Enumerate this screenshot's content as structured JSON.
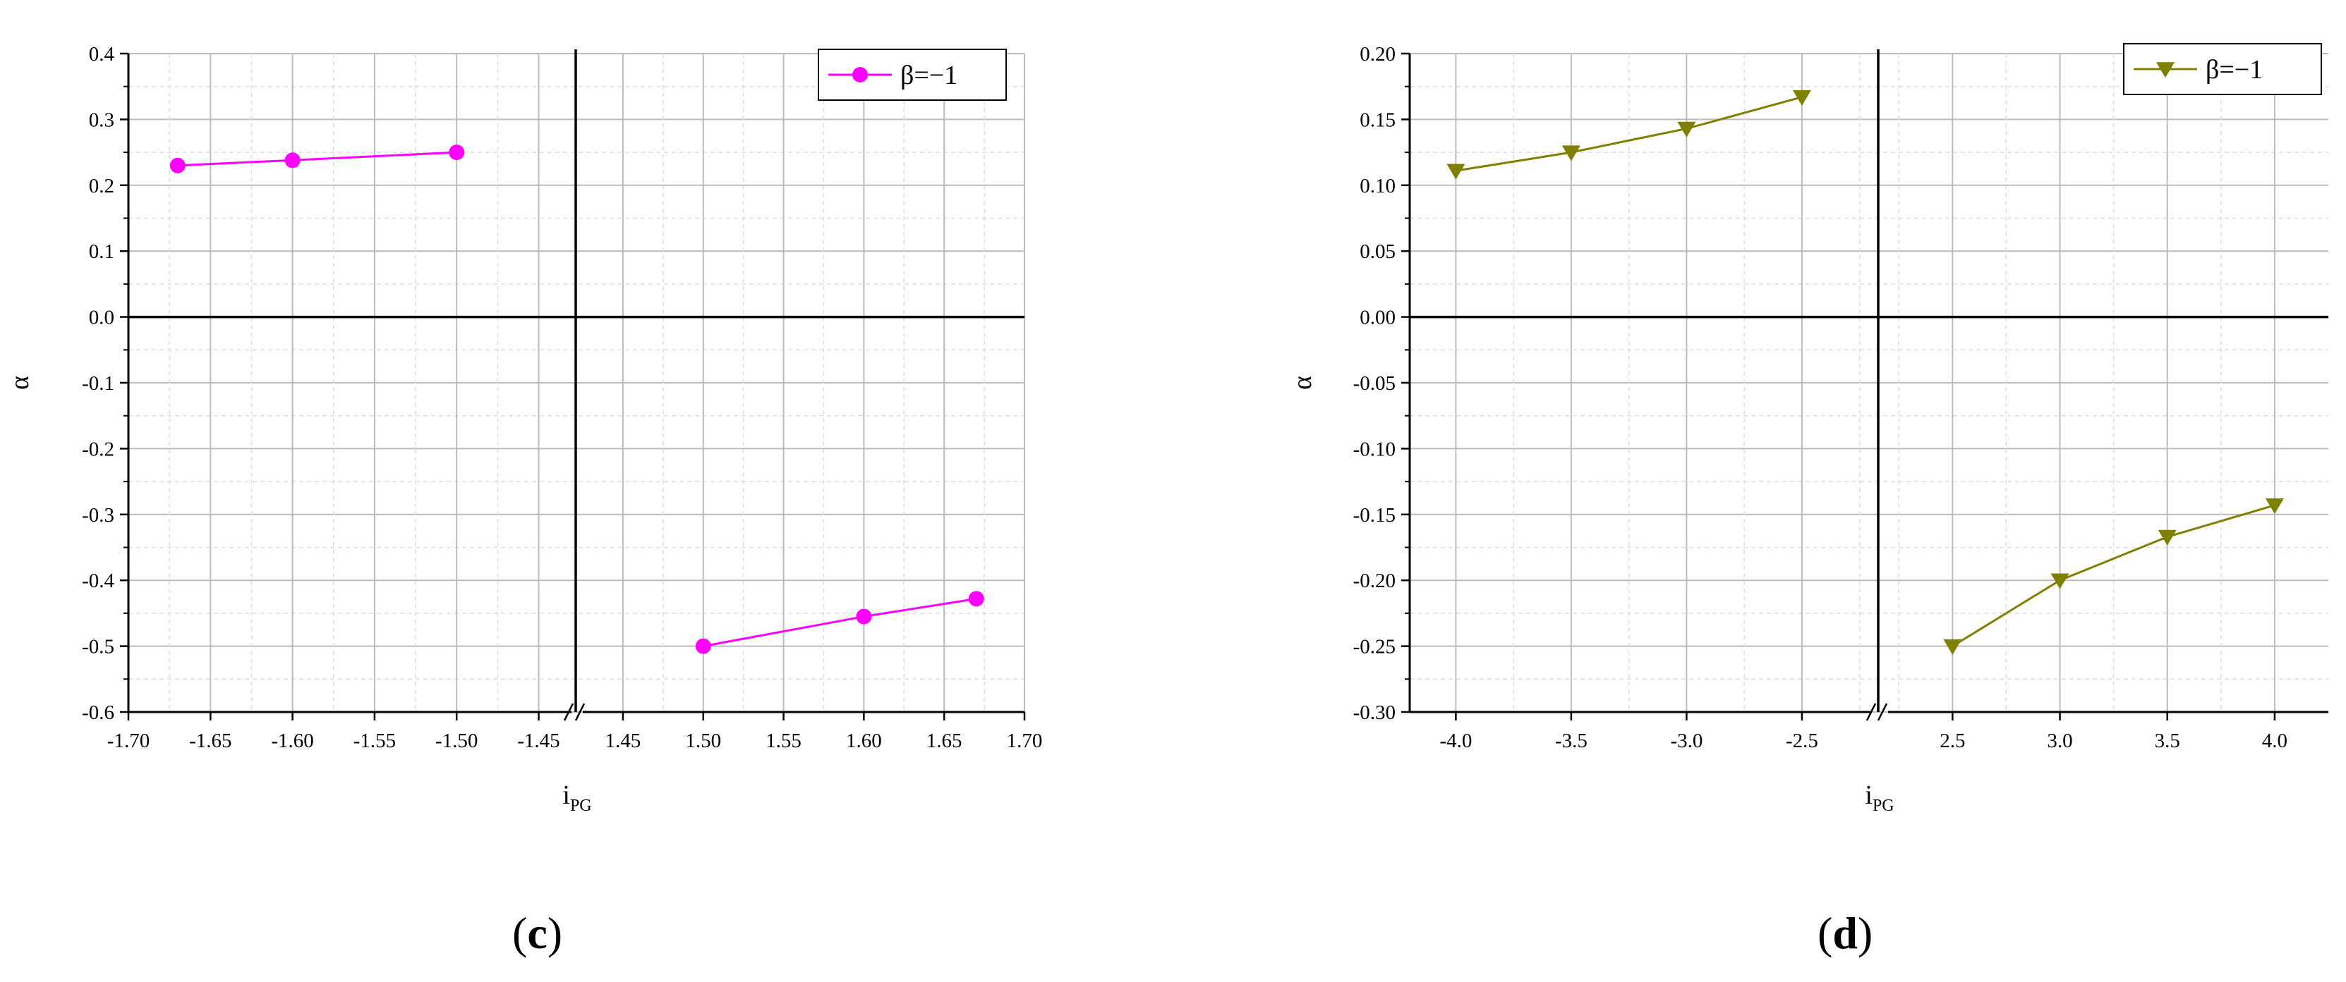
{
  "chart_data": [
    {
      "type": "line",
      "panel_label_open": "(",
      "panel_label_letter": "c",
      "panel_label_close": ")",
      "xlabel": "i",
      "xlabel_sub": "PG",
      "ylabel": "α",
      "ylim": [
        -0.6,
        0.4
      ],
      "yticks": [
        "0.4",
        "0.3",
        "0.2",
        "0.1",
        "0.0",
        "-0.1",
        "-0.2",
        "-0.3",
        "-0.4",
        "-0.5",
        "-0.6"
      ],
      "x_segments": [
        {
          "xlim": [
            -1.7,
            -1.43
          ],
          "ticks": [
            -1.7,
            -1.65,
            -1.6,
            -1.55,
            -1.5,
            -1.45
          ],
          "tick_labels": [
            "-1.70",
            "-1.65",
            "-1.60",
            "-1.55",
            "-1.50",
            "-1.45"
          ]
        },
        {
          "xlim": [
            1.425,
            1.7
          ],
          "ticks": [
            1.45,
            1.5,
            1.55,
            1.6,
            1.65,
            1.7
          ],
          "tick_labels": [
            "1.45",
            "1.50",
            "1.55",
            "1.60",
            "1.65",
            "1.70"
          ]
        }
      ],
      "axis_break": true,
      "grid": true,
      "legend_position": "top-right",
      "series": [
        {
          "name": "β=−1",
          "color": "#ff00ff",
          "marker": "circle",
          "groups": [
            {
              "segment": 0,
              "x": [
                -1.67,
                -1.6,
                -1.5
              ],
              "y": [
                0.23,
                0.238,
                0.25
              ]
            },
            {
              "segment": 1,
              "x": [
                1.5,
                1.6,
                1.67
              ],
              "y": [
                -0.5,
                -0.455,
                -0.428
              ]
            }
          ]
        }
      ]
    },
    {
      "type": "line",
      "panel_label_open": "(",
      "panel_label_letter": "d",
      "panel_label_close": ")",
      "xlabel": "i",
      "xlabel_sub": "PG",
      "ylabel": "α",
      "ylim": [
        -0.3,
        0.2
      ],
      "yticks": [
        "0.20",
        "0.15",
        "0.10",
        "0.05",
        "0.00",
        "-0.05",
        "-0.10",
        "-0.15",
        "-0.20",
        "-0.25",
        "-0.30"
      ],
      "x_segments": [
        {
          "xlim": [
            -4.2,
            -2.2
          ],
          "ticks": [
            -4.0,
            -3.5,
            -3.0,
            -2.5
          ],
          "tick_labels": [
            "-4.0",
            "-3.5",
            "-3.0",
            "-2.5"
          ]
        },
        {
          "xlim": [
            2.2,
            4.25
          ],
          "ticks": [
            2.5,
            3.0,
            3.5,
            4.0
          ],
          "tick_labels": [
            "2.5",
            "3.0",
            "3.5",
            "4.0"
          ]
        }
      ],
      "axis_break": true,
      "grid": true,
      "legend_position": "top-right",
      "series": [
        {
          "name": "β=−1",
          "color": "#808000",
          "marker": "triangle-down",
          "groups": [
            {
              "segment": 0,
              "x": [
                -4.0,
                -3.5,
                -3.0,
                -2.5
              ],
              "y": [
                0.111,
                0.125,
                0.143,
                0.167
              ]
            },
            {
              "segment": 1,
              "x": [
                2.5,
                3.0,
                3.5,
                4.0
              ],
              "y": [
                -0.25,
                -0.2,
                -0.167,
                -0.143
              ]
            }
          ]
        }
      ]
    }
  ]
}
